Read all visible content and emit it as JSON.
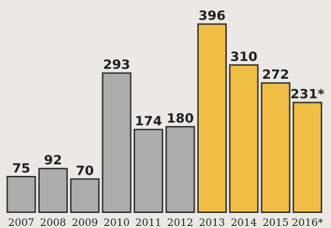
{
  "chart_data": {
    "type": "bar",
    "title": "",
    "xlabel": "",
    "ylabel": "",
    "categories": [
      "2007",
      "2008",
      "2009",
      "2010",
      "2011",
      "2012",
      "2013",
      "2014",
      "2015",
      "2016*"
    ],
    "values": [
      75,
      92,
      70,
      293,
      174,
      180,
      396,
      310,
      272,
      231
    ],
    "value_labels": [
      "75",
      "92",
      "70",
      "293",
      "174",
      "180",
      "396",
      "310",
      "272",
      "231*"
    ],
    "bar_colors": [
      "#adadad",
      "#adadad",
      "#adadad",
      "#adadad",
      "#adadad",
      "#adadad",
      "#f0bd45",
      "#f0bd45",
      "#f0bd45",
      "#f0bd45"
    ],
    "ylim": [
      0,
      400
    ],
    "grid": false,
    "legend": "none"
  }
}
